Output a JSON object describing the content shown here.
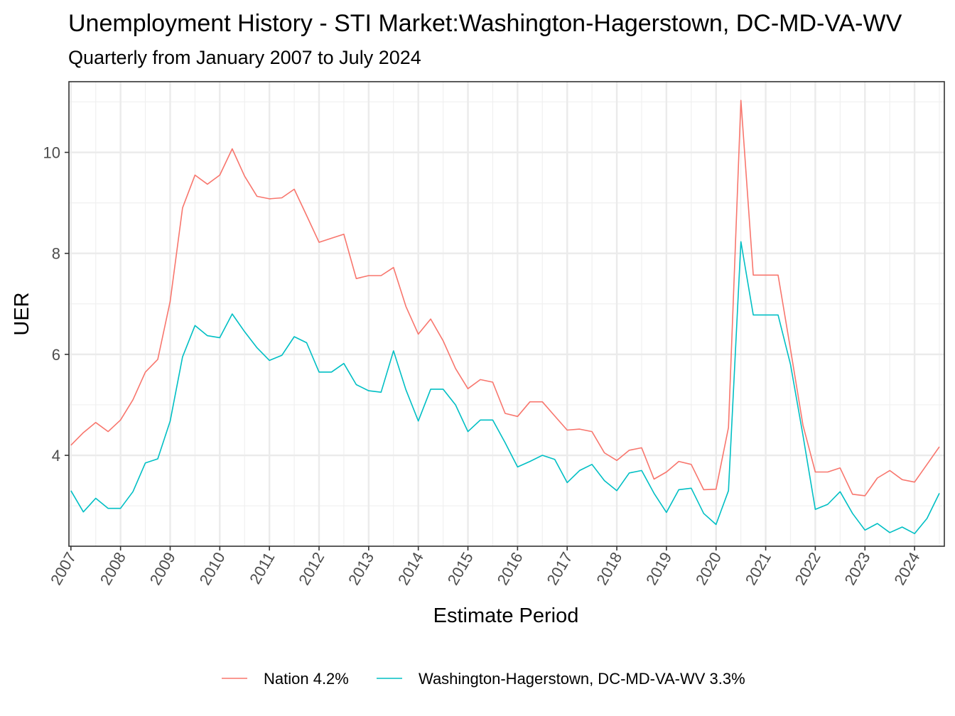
{
  "chart_data": {
    "type": "line",
    "title": "Unemployment History - STI Market:Washington-Hagerstown, DC-MD-VA-WV",
    "subtitle": "Quarterly from January 2007 to July 2024",
    "xlabel": "Estimate Period",
    "ylabel": "UER",
    "xlim": [
      2006.96,
      2024.6
    ],
    "ylim": [
      2.2,
      11.4
    ],
    "x_ticks": [
      "2007",
      "2008",
      "2009",
      "2010",
      "2011",
      "2012",
      "2013",
      "2014",
      "2015",
      "2016",
      "2017",
      "2018",
      "2019",
      "2020",
      "2021",
      "2022",
      "2023",
      "2024"
    ],
    "y_ticks": [
      4,
      6,
      8,
      10
    ],
    "grid": true,
    "legend_position": "bottom",
    "x_unit": "year (quarterly points from 2007.0 to 2024.5)",
    "series": [
      {
        "name": "Nation 4.2%",
        "color": "#F8766D",
        "values": [
          4.2,
          4.45,
          4.65,
          4.47,
          4.7,
          5.1,
          5.65,
          5.9,
          7.05,
          8.9,
          9.55,
          9.37,
          9.55,
          10.07,
          9.53,
          9.13,
          9.08,
          9.1,
          9.27,
          8.75,
          8.22,
          8.3,
          8.38,
          7.5,
          7.56,
          7.56,
          7.72,
          6.95,
          6.4,
          6.7,
          6.27,
          5.72,
          5.32,
          5.5,
          5.45,
          4.83,
          4.77,
          5.06,
          5.06,
          4.78,
          4.5,
          4.52,
          4.47,
          4.05,
          3.9,
          4.1,
          4.15,
          3.53,
          3.67,
          3.88,
          3.82,
          3.32,
          3.33,
          4.55,
          11.03,
          7.57,
          7.57,
          7.57,
          6.1,
          4.6,
          3.67,
          3.67,
          3.75,
          3.23,
          3.2,
          3.55,
          3.7,
          3.52,
          3.47,
          3.82,
          4.17
        ]
      },
      {
        "name": "Washington-Hagerstown, DC-MD-VA-WV 3.3%",
        "color": "#00BFC4",
        "values": [
          3.3,
          2.88,
          3.15,
          2.95,
          2.95,
          3.28,
          3.85,
          3.93,
          4.68,
          5.95,
          6.57,
          6.37,
          6.33,
          6.8,
          6.45,
          6.13,
          5.88,
          5.98,
          6.35,
          6.23,
          5.65,
          5.65,
          5.82,
          5.4,
          5.28,
          5.25,
          6.07,
          5.3,
          4.68,
          5.31,
          5.31,
          5.0,
          4.47,
          4.7,
          4.7,
          4.25,
          3.77,
          3.88,
          4.0,
          3.92,
          3.46,
          3.7,
          3.82,
          3.5,
          3.3,
          3.65,
          3.7,
          3.25,
          2.87,
          3.32,
          3.35,
          2.85,
          2.63,
          3.3,
          8.23,
          6.78,
          6.78,
          6.78,
          5.8,
          4.4,
          2.93,
          3.03,
          3.28,
          2.85,
          2.52,
          2.65,
          2.47,
          2.58,
          2.45,
          2.75,
          3.25
        ]
      }
    ]
  }
}
